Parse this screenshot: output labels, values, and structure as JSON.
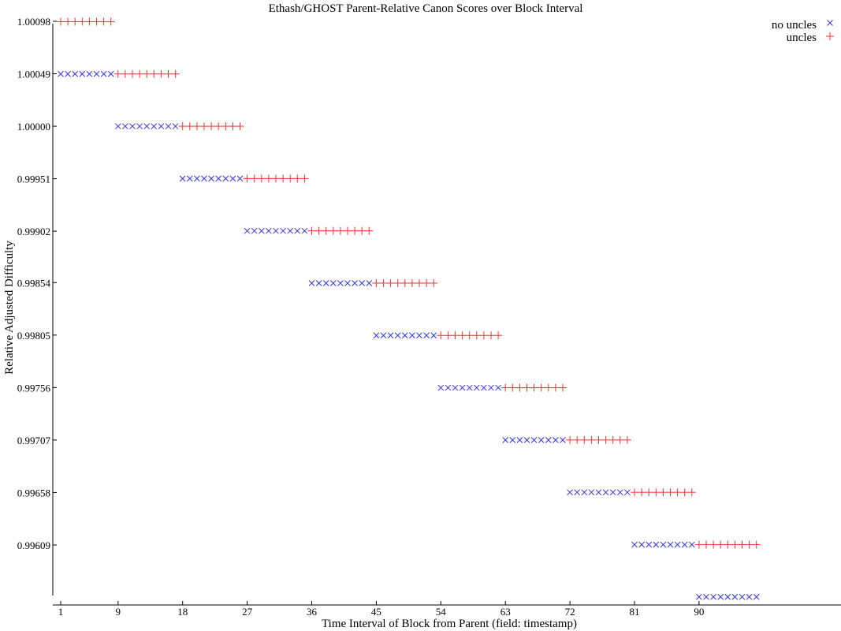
{
  "chart_data": {
    "type": "scatter",
    "title": "Ethash/GHOST Parent-Relative Canon Scores over Block Interval",
    "xlabel": "Time Interval of Block from Parent (field: timestamp)",
    "ylabel": "Relative Adjusted Difficulty",
    "x_ticks": [
      1,
      9,
      18,
      27,
      36,
      45,
      54,
      63,
      72,
      81,
      90
    ],
    "y_tick_labels": [
      "1.00098",
      "1.00049",
      "1.00000",
      "0.99951",
      "0.99902",
      "0.99854",
      "0.99805",
      "0.99756",
      "0.99707",
      "0.99658",
      "0.99609"
    ],
    "xlim": [
      0.7,
      99
    ],
    "ylim": [
      0.995604,
      1.00098
    ],
    "grid": false,
    "legend_position": "top-right",
    "step": 0.00048828125,
    "series": [
      {
        "name": "no uncles",
        "marker": "x",
        "color": "#3333ee",
        "segments": [
          {
            "x_from": 1,
            "x_to": 8,
            "y": 1.00048828125
          },
          {
            "x_from": 9,
            "x_to": 17,
            "y": 1.0
          },
          {
            "x_from": 18,
            "x_to": 26,
            "y": 0.99951171875
          },
          {
            "x_from": 27,
            "x_to": 35,
            "y": 0.9990234375
          },
          {
            "x_from": 36,
            "x_to": 44,
            "y": 0.99853515625
          },
          {
            "x_from": 45,
            "x_to": 53,
            "y": 0.998046875
          },
          {
            "x_from": 54,
            "x_to": 62,
            "y": 0.99755859375
          },
          {
            "x_from": 63,
            "x_to": 71,
            "y": 0.9970703125
          },
          {
            "x_from": 72,
            "x_to": 80,
            "y": 0.99658203125
          },
          {
            "x_from": 81,
            "x_to": 89,
            "y": 0.99609375
          },
          {
            "x_from": 90,
            "x_to": 98,
            "y": 0.99560546875
          }
        ]
      },
      {
        "name": "uncles",
        "marker": "+",
        "color": "#ee3333",
        "segments": [
          {
            "x_from": 1,
            "x_to": 8,
            "y": 1.0009765625
          },
          {
            "x_from": 9,
            "x_to": 17,
            "y": 1.00048828125
          },
          {
            "x_from": 18,
            "x_to": 26,
            "y": 1.0
          },
          {
            "x_from": 27,
            "x_to": 35,
            "y": 0.99951171875
          },
          {
            "x_from": 36,
            "x_to": 44,
            "y": 0.9990234375
          },
          {
            "x_from": 45,
            "x_to": 53,
            "y": 0.99853515625
          },
          {
            "x_from": 54,
            "x_to": 62,
            "y": 0.998046875
          },
          {
            "x_from": 63,
            "x_to": 71,
            "y": 0.99755859375
          },
          {
            "x_from": 72,
            "x_to": 80,
            "y": 0.9970703125
          },
          {
            "x_from": 81,
            "x_to": 89,
            "y": 0.99658203125
          },
          {
            "x_from": 90,
            "x_to": 98,
            "y": 0.99609375
          }
        ]
      }
    ]
  }
}
